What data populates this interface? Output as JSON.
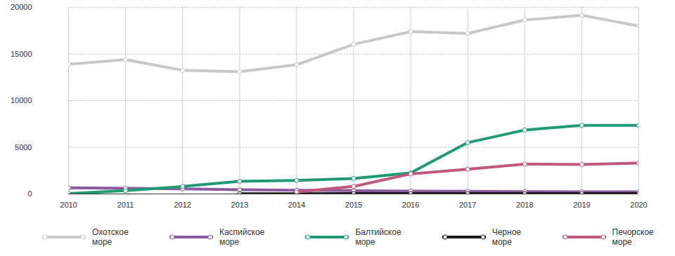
{
  "chart_data": {
    "type": "line",
    "x": [
      2010,
      2011,
      2012,
      2013,
      2014,
      2015,
      2016,
      2017,
      2018,
      2019,
      2020
    ],
    "xlim": [
      2010,
      2020
    ],
    "xticks": [
      2010,
      2011,
      2012,
      2013,
      2014,
      2015,
      2016,
      2017,
      2018,
      2019,
      2020
    ],
    "ylim": [
      0,
      20000
    ],
    "yticks": [
      0,
      5000,
      10000,
      15000,
      20000
    ],
    "grid": true,
    "legend": "bottom",
    "marker": "circle",
    "series": [
      {
        "name": "Охотское море",
        "color": "#c8c8c8",
        "values": [
          13900,
          14400,
          13250,
          13100,
          13850,
          16050,
          17400,
          17200,
          18650,
          19150,
          18000
        ]
      },
      {
        "name": "Каспийское море",
        "color": "#8a5a9e",
        "values": [
          650,
          600,
          550,
          450,
          400,
          350,
          300,
          280,
          250,
          230,
          230
        ]
      },
      {
        "name": "Балтийское море",
        "color": "#1f9a73",
        "values": [
          30,
          350,
          800,
          1350,
          1450,
          1650,
          2250,
          5500,
          6850,
          7350,
          7350
        ]
      },
      {
        "name": "Черное море",
        "color": "#1a1a1a",
        "values": [
          null,
          null,
          null,
          10,
          20,
          30,
          30,
          30,
          30,
          30,
          30
        ]
      },
      {
        "name": "Печорское море",
        "color": "#c0587a",
        "values": [
          null,
          null,
          null,
          null,
          200,
          800,
          2150,
          2650,
          3200,
          3150,
          3300
        ]
      }
    ]
  }
}
